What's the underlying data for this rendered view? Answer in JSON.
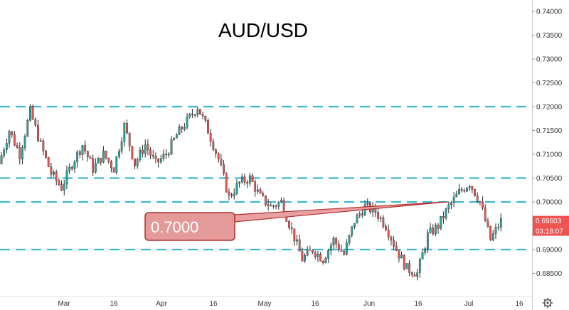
{
  "chart_data": {
    "type": "candlestick",
    "title": "AUD/USD",
    "x_ticks": [
      "Mar",
      "16",
      "Apr",
      "16",
      "May",
      "16",
      "Jun",
      "16",
      "Jul",
      "16"
    ],
    "y_ticks": [
      "0.74000",
      "0.73500",
      "0.73000",
      "0.72500",
      "0.72000",
      "0.71500",
      "0.71000",
      "0.70500",
      "0.70000",
      "0.69500",
      "0.69000",
      "0.68500"
    ],
    "ylim": [
      0.681,
      0.742
    ],
    "grid": false,
    "levels": [
      0.72,
      0.705,
      0.7,
      0.69
    ],
    "callout": {
      "label": "0.7000",
      "value": 0.7
    },
    "last_price": "0.69603",
    "countdown": "03:18:07",
    "series": [
      {
        "x": [
          "Feb 18",
          "Feb 21",
          "Feb 24",
          "Feb 27",
          "Mar 2",
          "Mar 5",
          "Mar 8",
          "Mar 11",
          "Mar 14",
          "Mar 17",
          "Mar 20",
          "Mar 23",
          "Mar 26",
          "Mar 29",
          "Apr 1",
          "Apr 4",
          "Apr 7",
          "Apr 10",
          "Apr 13",
          "Apr 16",
          "Apr 19",
          "Apr 22",
          "Apr 25",
          "Apr 28",
          "May 1",
          "May 4",
          "May 7",
          "May 10",
          "May 13",
          "May 16",
          "May 19",
          "May 22",
          "May 25",
          "May 28",
          "May 31",
          "Jun 3",
          "Jun 6",
          "Jun 9",
          "Jun 12",
          "Jun 15",
          "Jun 18",
          "Jun 21",
          "Jun 24",
          "Jun 27",
          "Jun 30",
          "Jul 3",
          "Jul 6",
          "Jul 9",
          "Jul 12"
        ],
        "close": [
          0.708,
          0.715,
          0.71,
          0.719,
          0.712,
          0.706,
          0.703,
          0.708,
          0.712,
          0.707,
          0.71,
          0.707,
          0.716,
          0.708,
          0.712,
          0.708,
          0.71,
          0.714,
          0.717,
          0.72,
          0.715,
          0.709,
          0.701,
          0.704,
          0.705,
          0.701,
          0.699,
          0.7,
          0.694,
          0.688,
          0.69,
          0.688,
          0.692,
          0.689,
          0.696,
          0.699,
          0.698,
          0.695,
          0.69,
          0.686,
          0.685,
          0.693,
          0.695,
          0.699,
          0.702,
          0.704,
          0.7,
          0.692,
          0.696
        ]
      }
    ]
  }
}
